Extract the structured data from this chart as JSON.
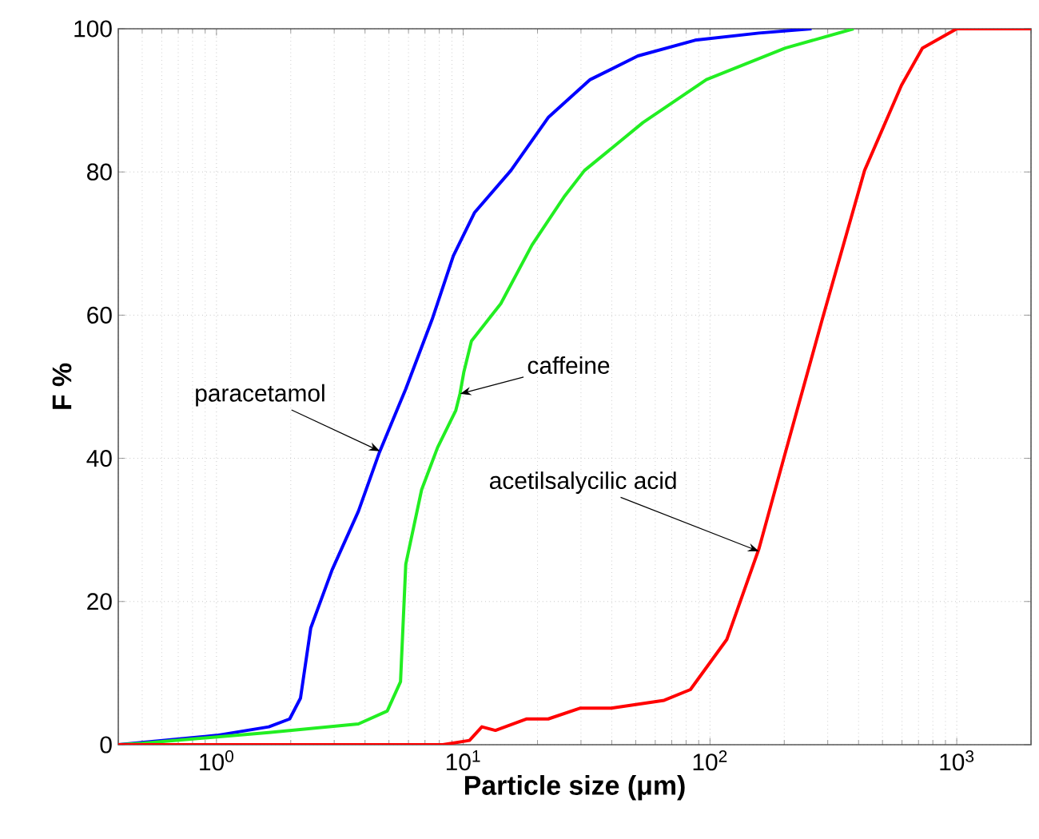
{
  "chart_data": {
    "type": "line",
    "xlabel": "Particle size (μm)",
    "ylabel": "F %",
    "xlim": [
      0.4,
      2000
    ],
    "ylim": [
      0,
      100
    ],
    "xticks": [
      {
        "value": 1,
        "label": "10$^{0}$"
      },
      {
        "value": 10,
        "label": "10$^{1}$"
      },
      {
        "value": 100,
        "label": "10$^{2}$"
      },
      {
        "value": 1000,
        "label": "10$^{3}$"
      }
    ],
    "yticks": [
      0,
      20,
      40,
      60,
      80,
      100
    ],
    "log": "x",
    "grid": true,
    "marker": "none",
    "series": [
      {
        "color": "#0000ff",
        "x": [
          0.4,
          1.0,
          1.63,
          1.98,
          2.19,
          2.41,
          2.94,
          3.76,
          4.57,
          5.85,
          7.48,
          9.12,
          11.1,
          15.6,
          22.1,
          32.7,
          51,
          87,
          158,
          258
        ],
        "values": [
          0,
          1.3,
          2.5,
          3.6,
          6.5,
          16.3,
          24.4,
          32.6,
          40.8,
          49.7,
          59.4,
          68.3,
          74.3,
          80.2,
          87.6,
          92.9,
          96.2,
          98.4,
          99.4,
          100
        ]
      },
      {
        "color": "#22ee22",
        "x": [
          0.4,
          0.5,
          1.63,
          3.76,
          4.92,
          5.57,
          5.85,
          6.78,
          7.87,
          9.33,
          9.7,
          10.05,
          10.8,
          14.2,
          19,
          25.6,
          31,
          53.5,
          96.7,
          202,
          382
        ],
        "values": [
          0,
          0.2,
          1.7,
          2.9,
          4.7,
          8.8,
          25.2,
          35.6,
          41.5,
          46.7,
          49,
          52,
          56.4,
          61.6,
          69.8,
          76.5,
          80.2,
          86.9,
          92.9,
          97.3,
          100
        ]
      },
      {
        "color": "#ff0000",
        "x": [
          0.4,
          8.26,
          10.6,
          11.9,
          13.5,
          18.1,
          22.1,
          29.7,
          39.8,
          65.2,
          83.3,
          117,
          158,
          202,
          285,
          423,
          597,
          726,
          1000,
          2000
        ],
        "values": [
          0,
          0,
          0.6,
          2.5,
          2,
          3.6,
          3.6,
          5.1,
          5.1,
          6.2,
          7.7,
          14.7,
          27.4,
          40.8,
          59.4,
          80.2,
          92.1,
          97.3,
          100,
          100
        ]
      }
    ],
    "annotations": [
      {
        "text": "paracetamol",
        "x": 4.6,
        "y": 41
      },
      {
        "text": "caffeine",
        "x": 9.7,
        "y": 49
      },
      {
        "text": "acetilsalycilic acid",
        "x": 158,
        "y": 27
      }
    ]
  }
}
